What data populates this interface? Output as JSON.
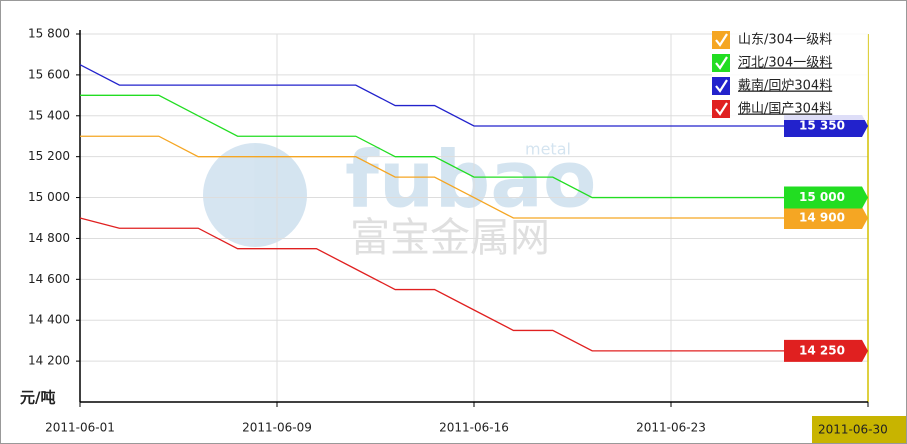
{
  "chart_data": {
    "type": "line",
    "y_axis_label": "元/吨",
    "watermark": {
      "logo": "fubao",
      "small": "metal",
      "name": "富宝金属网"
    },
    "categories": [
      "2011-06-01",
      null,
      null,
      null,
      null,
      "2011-06-09",
      null,
      null,
      null,
      null,
      "2011-06-16",
      null,
      null,
      null,
      null,
      "2011-06-23",
      null,
      null,
      null,
      null,
      "2011-06-30"
    ],
    "ylim": [
      14000,
      15800
    ],
    "yticks": [
      {
        "value": 14200,
        "label": "14 200"
      },
      {
        "value": 14400,
        "label": "14 400"
      },
      {
        "value": 14600,
        "label": "14 600"
      },
      {
        "value": 14800,
        "label": "14 800"
      },
      {
        "value": 15000,
        "label": "15 000"
      },
      {
        "value": 15200,
        "label": "15 200"
      },
      {
        "value": 15400,
        "label": "15 400"
      },
      {
        "value": 15600,
        "label": "15 600"
      },
      {
        "value": 15800,
        "label": "15 800"
      }
    ],
    "grid": true,
    "legend": "top-right",
    "series": [
      {
        "name": "山东/304一级料",
        "color": "#f5a623",
        "values": [
          15300,
          15300,
          15300,
          15200,
          15200,
          15200,
          15200,
          15200,
          15100,
          15100,
          15000,
          14900,
          14900,
          14900,
          14900,
          14900,
          14900,
          14900,
          14900,
          14900,
          14900
        ],
        "value_labels": [
          null,
          null,
          null,
          null,
          null,
          null,
          null,
          null,
          null,
          null,
          null,
          null,
          null,
          null,
          null,
          null,
          null,
          null,
          null,
          null,
          "14 900"
        ]
      },
      {
        "name": "河北/304一级料",
        "color": "#22dd22",
        "values": [
          15500,
          15500,
          15500,
          15400,
          15300,
          15300,
          15300,
          15300,
          15200,
          15200,
          15100,
          15100,
          15100,
          15000,
          15000,
          15000,
          15000,
          15000,
          15000,
          15000,
          15000
        ],
        "value_labels": [
          null,
          null,
          null,
          null,
          null,
          null,
          null,
          null,
          null,
          null,
          null,
          null,
          null,
          null,
          null,
          null,
          null,
          null,
          null,
          null,
          "15 000"
        ]
      },
      {
        "name": "戴南/回炉304料",
        "color": "#2222cc",
        "values": [
          15650,
          15550,
          15550,
          15550,
          15550,
          15550,
          15550,
          15550,
          15450,
          15450,
          15350,
          15350,
          15350,
          15350,
          15350,
          15350,
          15350,
          15350,
          15350,
          15350,
          15350
        ],
        "value_labels": [
          null,
          null,
          null,
          null,
          null,
          null,
          null,
          null,
          null,
          null,
          null,
          null,
          null,
          null,
          null,
          null,
          null,
          null,
          null,
          null,
          "15 350"
        ]
      },
      {
        "name": "佛山/国产304料",
        "color": "#e02020",
        "values": [
          14900,
          14850,
          14850,
          14850,
          14750,
          14750,
          14750,
          14650,
          14550,
          14550,
          14450,
          14350,
          14350,
          14250,
          14250,
          14250,
          14250,
          14250,
          14250,
          14250,
          14250
        ],
        "value_labels": [
          null,
          null,
          null,
          null,
          null,
          null,
          null,
          null,
          null,
          null,
          null,
          null,
          null,
          null,
          null,
          null,
          null,
          null,
          null,
          null,
          "14 250"
        ]
      }
    ]
  }
}
